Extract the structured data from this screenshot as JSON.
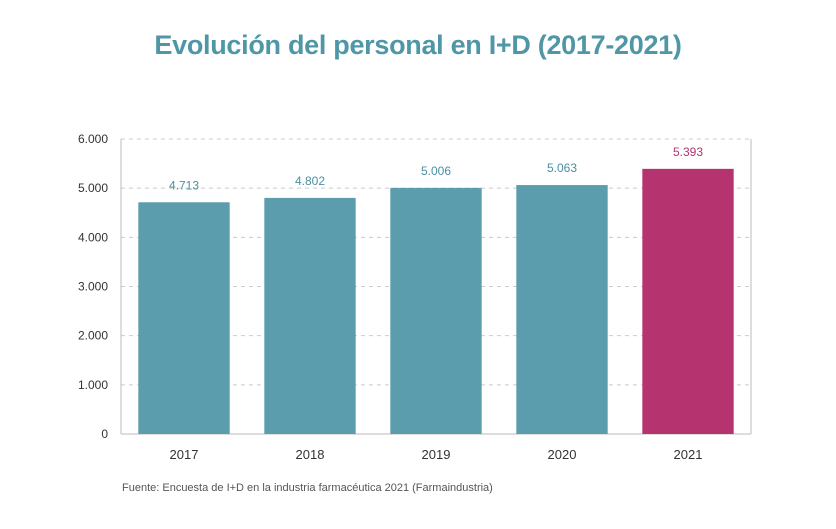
{
  "title": "Evolución del personal en I+D (2017-2021)",
  "source": "Fuente: Encuesta de I+D en la industria farmacéutica 2021 (Farmaindustria)",
  "colors": {
    "title": "#4f97a6",
    "bar": "#5b9cad",
    "highlight": "#b5336f",
    "label": "#4a8fa3",
    "axis_text": "#333333",
    "grid": "#cccccc",
    "axis_line": "#bbbbbb"
  },
  "chart_data": {
    "type": "bar",
    "title": "Evolución del personal en I+D (2017-2021)",
    "categories": [
      "2017",
      "2018",
      "2019",
      "2020",
      "2021"
    ],
    "values": [
      4713,
      4802,
      5006,
      5063,
      5393
    ],
    "value_labels": [
      "4.713",
      "4.802",
      "5.006",
      "5.063",
      "5.393"
    ],
    "highlight_index": 4,
    "ylim": [
      0,
      6000
    ],
    "yticks": [
      0,
      1000,
      2000,
      3000,
      4000,
      5000,
      6000
    ],
    "ytick_labels": [
      "0",
      "1.000",
      "2.000",
      "3.000",
      "4.000",
      "5.000",
      "6.000"
    ],
    "xlabel": "",
    "ylabel": "",
    "grid": "horizontal dashed",
    "legend": "none"
  }
}
